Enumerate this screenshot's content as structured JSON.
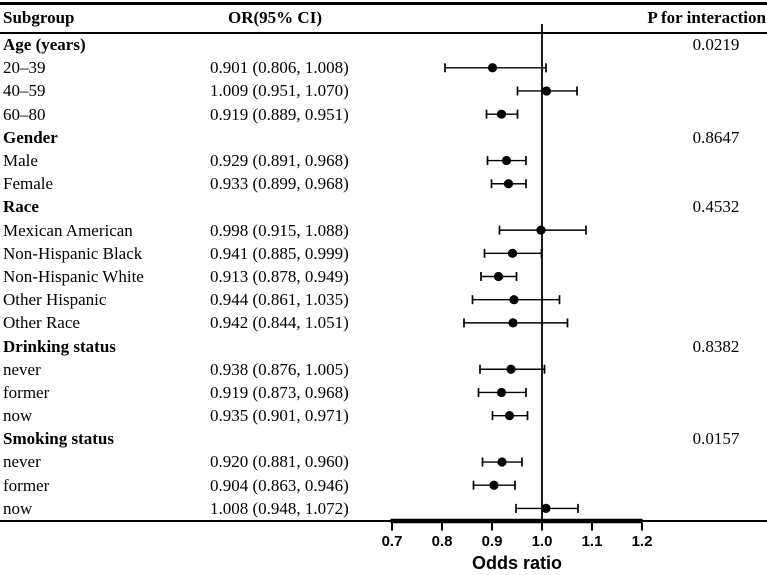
{
  "chart_data": {
    "type": "forest",
    "columns": [
      "Subgroup",
      "OR(95% CI)",
      "P for interaction"
    ],
    "xlabel": "Odds ratio",
    "x_ticks": [
      "0.7",
      "0.8",
      "0.9",
      "1.0",
      "1.1",
      "1.2"
    ],
    "x_range": [
      0.7,
      1.2
    ],
    "reference_line": 1.0,
    "legend": "none",
    "grid": false,
    "colors": {
      "marker": "#000000",
      "line": "#000000",
      "text": "#000000",
      "background": "#ffffff"
    },
    "rows": [
      {
        "label": "Age (years)",
        "group": true,
        "p_interaction": "0.0219"
      },
      {
        "label": "20–39",
        "or_ci_text": "0.901 (0.806, 1.008)",
        "or": 0.901,
        "ci_low": 0.806,
        "ci_high": 1.008
      },
      {
        "label": "40–59",
        "or_ci_text": "1.009 (0.951, 1.070)",
        "or": 1.009,
        "ci_low": 0.951,
        "ci_high": 1.07
      },
      {
        "label": "60–80",
        "or_ci_text": "0.919 (0.889, 0.951)",
        "or": 0.919,
        "ci_low": 0.889,
        "ci_high": 0.951
      },
      {
        "label": "Gender",
        "group": true,
        "p_interaction": "0.8647"
      },
      {
        "label": "Male",
        "or_ci_text": "0.929 (0.891, 0.968)",
        "or": 0.929,
        "ci_low": 0.891,
        "ci_high": 0.968
      },
      {
        "label": "Female",
        "or_ci_text": "0.933 (0.899, 0.968)",
        "or": 0.933,
        "ci_low": 0.899,
        "ci_high": 0.968
      },
      {
        "label": "Race",
        "group": true,
        "p_interaction": "0.4532"
      },
      {
        "label": "Mexican American",
        "or_ci_text": "0.998 (0.915, 1.088)",
        "or": 0.998,
        "ci_low": 0.915,
        "ci_high": 1.088
      },
      {
        "label": "Non-Hispanic Black",
        "or_ci_text": "0.941 (0.885, 0.999)",
        "or": 0.941,
        "ci_low": 0.885,
        "ci_high": 0.999
      },
      {
        "label": "Non-Hispanic White",
        "or_ci_text": "0.913 (0.878, 0.949)",
        "or": 0.913,
        "ci_low": 0.878,
        "ci_high": 0.949
      },
      {
        "label": "Other Hispanic",
        "or_ci_text": "0.944 (0.861, 1.035)",
        "or": 0.944,
        "ci_low": 0.861,
        "ci_high": 1.035
      },
      {
        "label": "Other Race",
        "or_ci_text": "0.942 (0.844, 1.051)",
        "or": 0.942,
        "ci_low": 0.844,
        "ci_high": 1.051
      },
      {
        "label": "Drinking status",
        "group": true,
        "p_interaction": "0.8382"
      },
      {
        "label": "never",
        "or_ci_text": "0.938 (0.876, 1.005)",
        "or": 0.938,
        "ci_low": 0.876,
        "ci_high": 1.005
      },
      {
        "label": "former",
        "or_ci_text": "0.919 (0.873, 0.968)",
        "or": 0.919,
        "ci_low": 0.873,
        "ci_high": 0.968
      },
      {
        "label": "now",
        "or_ci_text": "0.935 (0.901, 0.971)",
        "or": 0.935,
        "ci_low": 0.901,
        "ci_high": 0.971
      },
      {
        "label": "Smoking status",
        "group": true,
        "p_interaction": "0.0157"
      },
      {
        "label": "never",
        "or_ci_text": "0.920 (0.881, 0.960)",
        "or": 0.92,
        "ci_low": 0.881,
        "ci_high": 0.96
      },
      {
        "label": "former",
        "or_ci_text": "0.904 (0.863, 0.946)",
        "or": 0.904,
        "ci_low": 0.863,
        "ci_high": 0.946
      },
      {
        "label": "now",
        "or_ci_text": "1.008 (0.948, 1.072)",
        "or": 1.008,
        "ci_low": 0.948,
        "ci_high": 1.072
      }
    ]
  }
}
